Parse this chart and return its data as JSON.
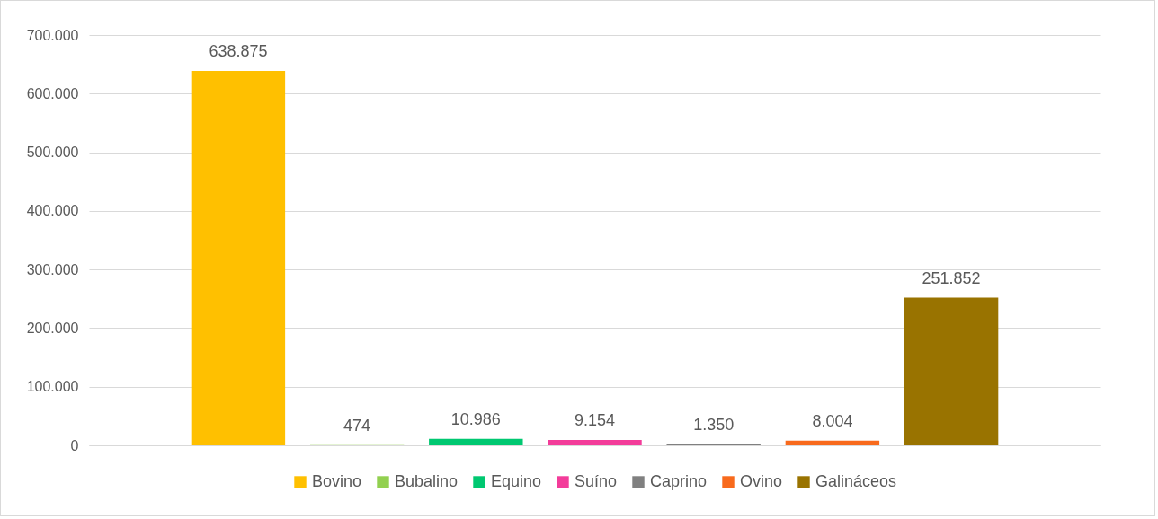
{
  "chart_data": {
    "type": "bar",
    "categories": [
      null
    ],
    "series": [
      {
        "name": "Bovino",
        "color": "#ffc000",
        "values": [
          638875
        ],
        "value_labels": [
          "638.875"
        ]
      },
      {
        "name": "Bubalino",
        "color": "#92d050",
        "values": [
          474
        ],
        "value_labels": [
          "474"
        ]
      },
      {
        "name": "Equino",
        "color": "#00c871",
        "values": [
          10986
        ],
        "value_labels": [
          "10.986"
        ]
      },
      {
        "name": "Suíno",
        "color": "#f33c9a",
        "values": [
          9154
        ],
        "value_labels": [
          "9.154"
        ]
      },
      {
        "name": "Caprino",
        "color": "#808080",
        "values": [
          1350
        ],
        "value_labels": [
          "1.350"
        ]
      },
      {
        "name": "Ovino",
        "color": "#f86a1c",
        "values": [
          8004
        ],
        "value_labels": [
          "8.004"
        ]
      },
      {
        "name": "Galináceos",
        "color": "#997300",
        "values": [
          251852
        ],
        "value_labels": [
          "251.852"
        ]
      }
    ],
    "ylim": [
      0,
      700000
    ],
    "yticks": [
      {
        "value": 0,
        "label": "0"
      },
      {
        "value": 100000,
        "label": "100.000"
      },
      {
        "value": 200000,
        "label": "200.000"
      },
      {
        "value": 300000,
        "label": "300.000"
      },
      {
        "value": 400000,
        "label": "400.000"
      },
      {
        "value": 500000,
        "label": "500.000"
      },
      {
        "value": 600000,
        "label": "600.000"
      },
      {
        "value": 700000,
        "label": "700.000"
      }
    ],
    "grid": "y",
    "legend": "bottom",
    "tick_labels": "y"
  }
}
